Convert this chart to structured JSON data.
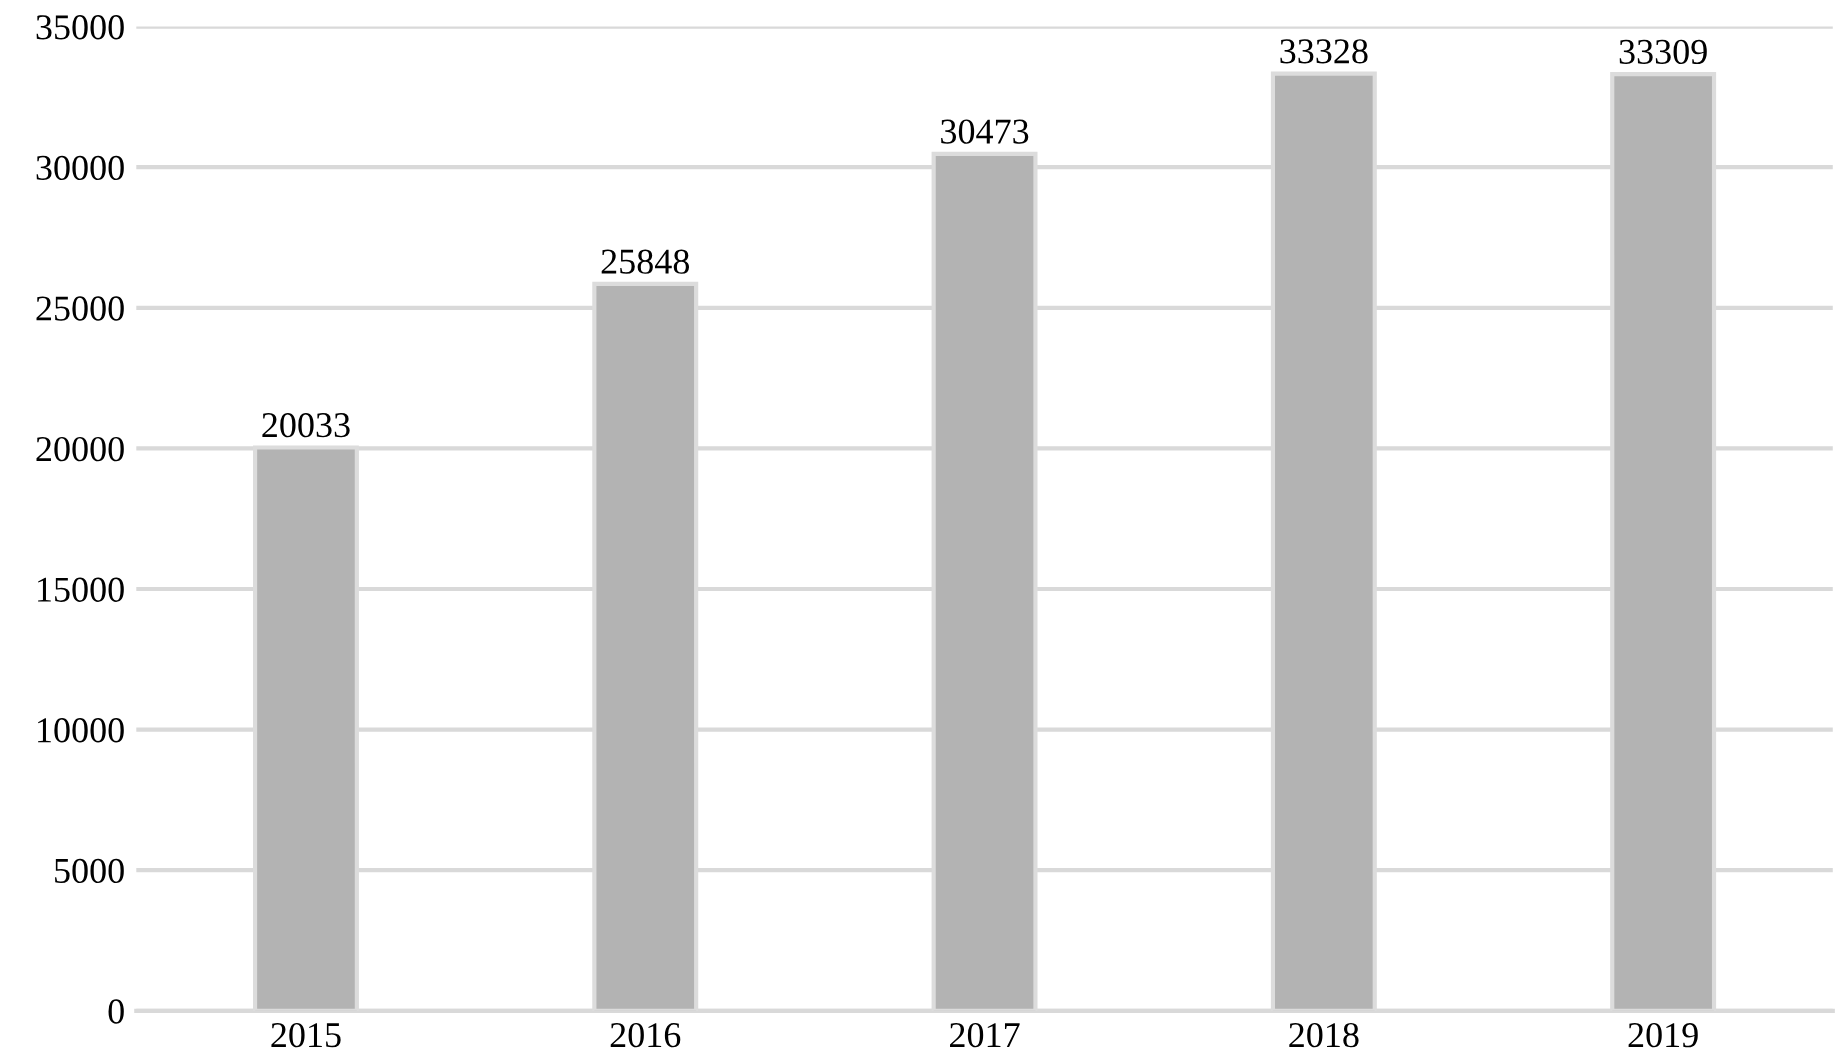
{
  "chart_data": {
    "type": "bar",
    "categories": [
      "2015",
      "2016",
      "2017",
      "2018",
      "2019"
    ],
    "values": [
      20033,
      25848,
      30473,
      33328,
      33309
    ],
    "color": "#b3b3b3",
    "ylim": [
      0,
      35000
    ],
    "yticks": [
      0,
      5000,
      10000,
      15000,
      20000,
      25000,
      30000,
      35000
    ],
    "grid": "y",
    "data_labels": true
  }
}
